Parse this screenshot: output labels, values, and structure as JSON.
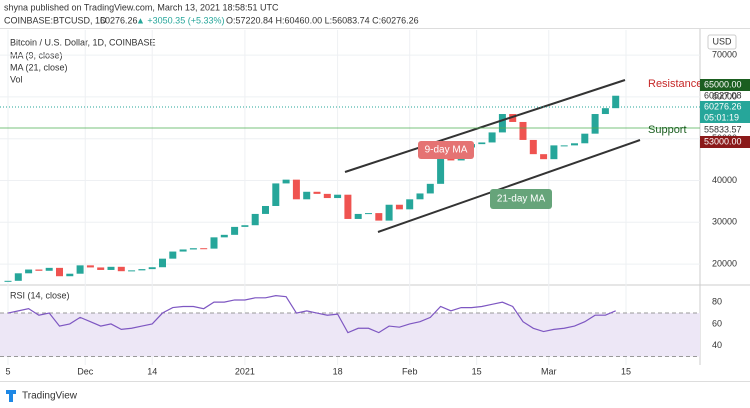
{
  "header": {
    "publisher": "shyna published on TradingView.com, March 13, 2021 18:58:51 UTC",
    "symbol": "COINBASE:BTCUSD, 1D",
    "last": "60276.26",
    "change": "▲ +3050.35 (+5.33%)",
    "ohlc": "O:57220.84 H:60460.00 L:56083.74 C:60276.26"
  },
  "legend": {
    "title": "Bitcoin / U.S. Dollar, 1D, COINBASE",
    "ma9": "MA (9, close)",
    "ma21": "MA (21, close)",
    "vol": "Vol"
  },
  "currency": "USD",
  "annotations": {
    "resistance": "Resistance",
    "support": "Support",
    "ma9": "9-day MA",
    "ma21": "21-day MA"
  },
  "price_tags": {
    "high": "60527.08",
    "last": "60276.26",
    "countdown": "05:01:19",
    "ma": "55833.57",
    "resistance": "65000.00",
    "support": "53000.00"
  },
  "chart_data": [
    {
      "type": "candlestick",
      "series": [
        {
          "name": "BTCUSD",
          "up_color": "#26a69a",
          "down_color": "#ef5350",
          "values": [
            16000,
            17800,
            18700,
            18400,
            19100,
            17100,
            17700,
            19700,
            19200,
            18600,
            19350,
            18300,
            18500,
            18800,
            19250,
            21300,
            23000,
            23500,
            23800,
            23700,
            26400,
            27000,
            28900,
            29300,
            32000,
            33900,
            39300,
            40200,
            35500,
            37300,
            36800,
            35800,
            36600,
            30800,
            32000,
            32200,
            30400,
            34200,
            33100,
            35500,
            36900,
            39200,
            46200,
            44800,
            47900,
            48700,
            49100,
            51500,
            55900,
            54000,
            49700,
            46300,
            45100,
            48400,
            48400,
            48900,
            51200,
            55900,
            57300,
            60276.26
          ]
        }
      ],
      "ylim": [
        15000,
        76000
      ],
      "yticks": [
        20000,
        30000,
        40000,
        50000,
        60000,
        70000
      ],
      "xticks": [
        {
          "value": 0,
          "label": "5"
        },
        {
          "value": 7.5,
          "label": "Dec"
        },
        {
          "value": 14,
          "label": "14"
        },
        {
          "value": 23,
          "label": "2021"
        },
        {
          "value": 32,
          "label": "18"
        },
        {
          "value": 39,
          "label": "Feb"
        },
        {
          "value": 45.5,
          "label": "15"
        },
        {
          "value": 52.5,
          "label": "Mar"
        },
        {
          "value": 60,
          "label": "15"
        }
      ],
      "grid": true
    },
    {
      "type": "line",
      "title": "RSI (14, close)",
      "series": [
        {
          "name": "RSI",
          "color": "#7e57c2",
          "values": [
            70,
            72,
            74,
            68,
            70,
            58,
            60,
            66,
            62,
            58,
            60,
            55,
            56,
            58,
            60,
            70,
            75,
            76,
            76,
            74,
            80,
            80,
            82,
            82,
            84,
            84,
            86,
            85,
            70,
            72,
            70,
            68,
            69,
            52,
            56,
            56,
            52,
            58,
            57,
            60,
            62,
            66,
            76,
            72,
            75,
            75,
            76,
            78,
            80,
            76,
            62,
            56,
            53,
            55,
            56,
            58,
            62,
            68,
            68,
            72
          ]
        }
      ],
      "ylim": [
        25,
        93
      ],
      "yticks": [
        40,
        60,
        80
      ],
      "band": [
        30,
        70
      ]
    }
  ]
}
